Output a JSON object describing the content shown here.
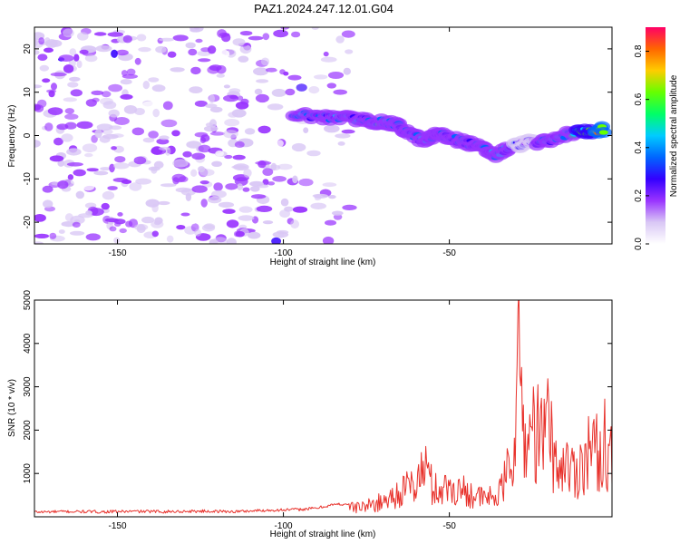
{
  "chart_data": [
    {
      "type": "heatmap",
      "title": "PAZ1.2024.247.12.01.G04",
      "xlabel": "Height of straight line (km)",
      "ylabel": "Frequency (Hz)",
      "xlim": [
        -175,
        -1
      ],
      "ylim": [
        -25,
        25
      ],
      "x_ticks": [
        -150,
        -100,
        -50
      ],
      "x_tick_labels": [
        "-150",
        "-100",
        "-50"
      ],
      "y_ticks": [
        20,
        10,
        0,
        -10,
        -20
      ],
      "y_tick_labels": [
        "20",
        "10",
        "0",
        "-10",
        "-20"
      ],
      "colorbar": {
        "label": "Normalized spectral amplitude",
        "range": [
          0,
          0.9
        ],
        "ticks": [
          0.0,
          0.2,
          0.4,
          0.6,
          0.8
        ],
        "tick_labels": [
          "0.0",
          "0.2",
          "0.4",
          "0.6",
          "0.8"
        ],
        "colors": [
          "#ffffff",
          "#d9c7f5",
          "#9933ff",
          "#3300ff",
          "#0066ff",
          "#00ccff",
          "#00ff66",
          "#66ff00",
          "#ffcc00",
          "#ff6600",
          "#ff0066"
        ]
      },
      "noise_region": {
        "x": [
          -175,
          -80
        ],
        "freq": [
          -25,
          25
        ],
        "level": 0.12
      },
      "signal_track": [
        {
          "x": -97,
          "freq": 5.0,
          "amp": 0.4
        },
        {
          "x": -88,
          "freq": 4.2,
          "amp": 0.3
        },
        {
          "x": -81,
          "freq": 4.0,
          "amp": 0.45
        },
        {
          "x": -75,
          "freq": 3.5,
          "amp": 0.4
        },
        {
          "x": -70,
          "freq": 3.0,
          "amp": 0.45
        },
        {
          "x": -66,
          "freq": 2.5,
          "amp": 0.35
        },
        {
          "x": -62,
          "freq": 0.5,
          "amp": 0.3
        },
        {
          "x": -57,
          "freq": -1.5,
          "amp": 0.4
        },
        {
          "x": -54,
          "freq": 0.5,
          "amp": 0.35
        },
        {
          "x": -50,
          "freq": -0.5,
          "amp": 0.4
        },
        {
          "x": -45,
          "freq": -1.5,
          "amp": 0.35
        },
        {
          "x": -40,
          "freq": -3.0,
          "amp": 0.3
        },
        {
          "x": -36,
          "freq": -4.5,
          "amp": 0.4
        },
        {
          "x": -31,
          "freq": -2.5,
          "amp": 0.3
        },
        {
          "x": -26,
          "freq": -1.5,
          "amp": 0.25
        },
        {
          "x": -20,
          "freq": -1.5,
          "amp": 0.4
        },
        {
          "x": -14,
          "freq": 0.5,
          "amp": 0.45
        },
        {
          "x": -8,
          "freq": 1.0,
          "amp": 0.6
        },
        {
          "x": -3,
          "freq": 1.5,
          "amp": 0.85
        }
      ]
    },
    {
      "type": "line",
      "xlabel": "Height of straight line (km)",
      "ylabel": "SNR (10 * v/v)",
      "xlim": [
        -175,
        -1
      ],
      "ylim": [
        0,
        5000
      ],
      "x_ticks": [
        -150,
        -100,
        -50
      ],
      "x_tick_labels": [
        "-150",
        "-100",
        "-50"
      ],
      "y_ticks": [
        1000,
        2000,
        3000,
        4000,
        5000
      ],
      "y_tick_labels": [
        "1000",
        "2000",
        "3000",
        "4000",
        "5000"
      ],
      "line_color": "#e8322c",
      "series": [
        {
          "x": [
            -175,
            -165,
            -155,
            -145,
            -135,
            -125,
            -115,
            -105,
            -95,
            -90,
            -85,
            -80,
            -75,
            -70,
            -65,
            -60,
            -57,
            -55,
            -50,
            -45,
            -40,
            -35,
            -32,
            -30,
            -29,
            -27,
            -25,
            -22,
            -20,
            -18,
            -15,
            -12,
            -10,
            -7,
            -5,
            -3,
            -1
          ],
          "values": [
            110,
            120,
            115,
            125,
            120,
            130,
            120,
            150,
            170,
            200,
            280,
            300,
            350,
            500,
            800,
            1100,
            1700,
            900,
            950,
            850,
            600,
            700,
            1600,
            3200,
            5000,
            2200,
            3000,
            2500,
            3200,
            1600,
            1800,
            1400,
            1900,
            2300,
            2000,
            2600,
            1700
          ]
        }
      ]
    }
  ]
}
